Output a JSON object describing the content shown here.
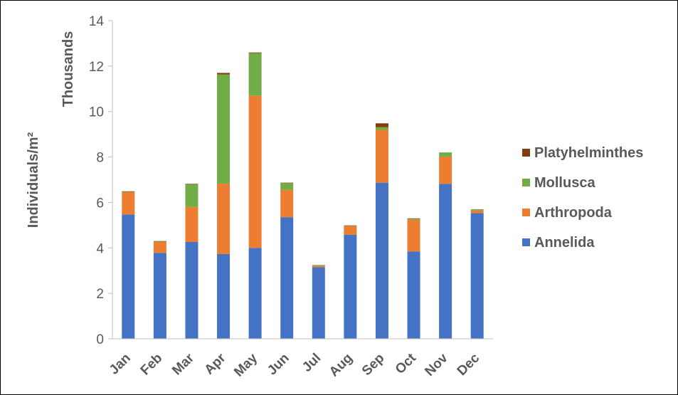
{
  "chart_data": {
    "type": "bar",
    "stacked": true,
    "categories": [
      "Jan",
      "Feb",
      "Mar",
      "Apr",
      "May",
      "Jun",
      "Jul",
      "Aug",
      "Sep",
      "Oct",
      "Nov",
      "Dec"
    ],
    "series": [
      {
        "name": "Annelida",
        "color": "#4472C4",
        "values": [
          5.47,
          3.78,
          4.26,
          3.73,
          4.0,
          5.35,
          3.15,
          4.58,
          6.87,
          3.84,
          6.82,
          5.53
        ]
      },
      {
        "name": "Arthropoda",
        "color": "#ED7D31",
        "values": [
          0.98,
          0.48,
          1.54,
          3.1,
          6.7,
          1.2,
          0.05,
          0.37,
          2.32,
          1.4,
          1.2,
          0.12
        ]
      },
      {
        "name": "Mollusca",
        "color": "#70AD47",
        "values": [
          0.02,
          0.02,
          1.0,
          4.8,
          1.87,
          0.3,
          0.02,
          0.02,
          0.12,
          0.04,
          0.18,
          0.05
        ]
      },
      {
        "name": "Platyhelminthes",
        "color": "#843C0C",
        "values": [
          0.02,
          0.02,
          0.02,
          0.07,
          0.03,
          0.02,
          0.02,
          0.02,
          0.17,
          0.02,
          0.0,
          0.0
        ]
      }
    ],
    "ylabel": "Individuals/m²",
    "yunit_label": "Thousands",
    "ylim": [
      0,
      14
    ],
    "yticks": [
      "0",
      "2",
      "4",
      "6",
      "8",
      "10",
      "12",
      "14"
    ],
    "grid": false,
    "legend_position": "right",
    "legend_order": [
      "Platyhelminthes",
      "Mollusca",
      "Arthropoda",
      "Annelida"
    ]
  }
}
